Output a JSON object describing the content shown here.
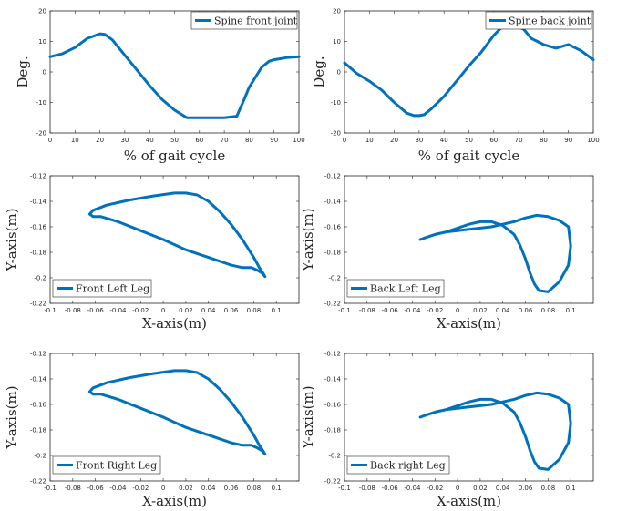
{
  "chart_data": [
    {
      "type": "line",
      "xlabel": "% of gait cycle",
      "ylabel": "Deg.",
      "xlim": [
        0,
        100
      ],
      "ylim": [
        -20,
        20
      ],
      "xticks": [
        0,
        10,
        20,
        30,
        40,
        50,
        60,
        70,
        80,
        90,
        100
      ],
      "yticks": [
        -20,
        -10,
        0,
        10,
        20
      ],
      "grid": false,
      "legend_loc": "top-right",
      "series": [
        {
          "name": "Spine front joint",
          "color": "#0072BD",
          "x": [
            0,
            5,
            10,
            15,
            20,
            22,
            25,
            30,
            35,
            40,
            45,
            50,
            55,
            57,
            60,
            65,
            70,
            75,
            78,
            80,
            85,
            88,
            90,
            95,
            100
          ],
          "y": [
            5,
            6,
            8,
            11,
            12.5,
            12.3,
            10.5,
            5.5,
            0.5,
            -4.5,
            -9,
            -12.5,
            -15,
            -15,
            -15,
            -15,
            -15,
            -14.5,
            -9,
            -5,
            1.5,
            3.5,
            4,
            4.7,
            5
          ]
        }
      ]
    },
    {
      "type": "line",
      "xlabel": "% of gait cycle",
      "ylabel": "Deg.",
      "xlim": [
        0,
        100
      ],
      "ylim": [
        -20,
        20
      ],
      "xticks": [
        0,
        10,
        20,
        30,
        40,
        50,
        60,
        70,
        80,
        90,
        100
      ],
      "yticks": [
        -20,
        -10,
        0,
        10,
        20
      ],
      "grid": false,
      "legend_loc": "top-right",
      "series": [
        {
          "name": "Spine back joint",
          "color": "#0072BD",
          "x": [
            0,
            5,
            10,
            15,
            20,
            25,
            28,
            30,
            32,
            35,
            40,
            45,
            50,
            55,
            60,
            63,
            65,
            70,
            72,
            75,
            80,
            85,
            90,
            95,
            100
          ],
          "y": [
            3,
            -0.5,
            -3,
            -6,
            -10,
            -13.5,
            -14.3,
            -14.3,
            -14,
            -12,
            -8,
            -3,
            2,
            6.5,
            12,
            14.5,
            15,
            14.7,
            14,
            11,
            9,
            7.8,
            9,
            7,
            4
          ]
        }
      ]
    },
    {
      "type": "line",
      "xlabel": "X-axis(m)",
      "ylabel": "Y-axis(m)",
      "xlim": [
        -0.1,
        0.12
      ],
      "ylim": [
        -0.22,
        -0.12
      ],
      "xticks": [
        "-0.1",
        "-0.08",
        "-0.06",
        "-0.04",
        "-0.02",
        "0",
        "0.02",
        "0.04",
        "0.06",
        "0.08",
        "0.1"
      ],
      "yticks": [
        "-0.22",
        "-0.2",
        "-0.18",
        "-0.16",
        "-0.14",
        "-0.12"
      ],
      "grid": false,
      "legend_loc": "bottom-left",
      "series": [
        {
          "name": "Front Left Leg",
          "color": "#0072BD",
          "x": [
            0.09,
            0.087,
            0.083,
            0.078,
            0.07,
            0.06,
            0.05,
            0.04,
            0.03,
            0.02,
            0.01,
            0,
            -0.02,
            -0.04,
            -0.055,
            -0.062,
            -0.065,
            -0.062,
            -0.05,
            -0.03,
            -0.01,
            0.01,
            0.02,
            0.03,
            0.04,
            0.05,
            0.06,
            0.07,
            0.08,
            0.085,
            0.088,
            0.09
          ],
          "y": [
            -0.199,
            -0.196,
            -0.194,
            -0.192,
            -0.192,
            -0.19,
            -0.187,
            -0.184,
            -0.181,
            -0.178,
            -0.174,
            -0.17,
            -0.163,
            -0.156,
            -0.152,
            -0.152,
            -0.15,
            -0.147,
            -0.143,
            -0.139,
            -0.136,
            -0.1335,
            -0.1335,
            -0.135,
            -0.14,
            -0.148,
            -0.158,
            -0.17,
            -0.184,
            -0.192,
            -0.196,
            -0.199
          ]
        }
      ]
    },
    {
      "type": "line",
      "xlabel": "X-axis(m)",
      "ylabel": "Y-axis(m)",
      "xlim": [
        -0.1,
        0.12
      ],
      "ylim": [
        -0.22,
        -0.12
      ],
      "xticks": [
        "-0.1",
        "-0.08",
        "-0.06",
        "-0.04",
        "-0.02",
        "0",
        "0.02",
        "0.04",
        "0.06",
        "0.08",
        "0.1"
      ],
      "yticks": [
        "-0.22",
        "-0.2",
        "-0.18",
        "-0.16",
        "-0.14",
        "-0.12"
      ],
      "grid": false,
      "legend_loc": "bottom-left",
      "series": [
        {
          "name": "Back Left Leg",
          "color": "#0072BD",
          "x": [
            -0.033,
            -0.03,
            -0.02,
            -0.01,
            0,
            0.01,
            0.02,
            0.03,
            0.04,
            0.05,
            0.06,
            0.07,
            0.08,
            0.09,
            0.098,
            0.1,
            0.098,
            0.09,
            0.08,
            0.072,
            0.068,
            0.064,
            0.06,
            0.055,
            0.05,
            0.04,
            0.03,
            0.02,
            0.01,
            0,
            -0.01,
            -0.02,
            -0.03,
            -0.033
          ],
          "y": [
            -0.17,
            -0.169,
            -0.166,
            -0.164,
            -0.163,
            -0.162,
            -0.161,
            -0.16,
            -0.158,
            -0.156,
            -0.153,
            -0.151,
            -0.152,
            -0.155,
            -0.16,
            -0.175,
            -0.19,
            -0.203,
            -0.211,
            -0.21,
            -0.205,
            -0.196,
            -0.185,
            -0.174,
            -0.166,
            -0.159,
            -0.156,
            -0.156,
            -0.158,
            -0.161,
            -0.164,
            -0.166,
            -0.169,
            -0.17
          ]
        }
      ]
    },
    {
      "type": "line",
      "xlabel": "X-axis(m)",
      "ylabel": "Y-axis(m)",
      "xlim": [
        -0.1,
        0.12
      ],
      "ylim": [
        -0.22,
        -0.12
      ],
      "xticks": [
        "-0.1",
        "-0.08",
        "-0.06",
        "-0.04",
        "-0.02",
        "0",
        "0.02",
        "0.04",
        "0.06",
        "0.08",
        "0.1"
      ],
      "yticks": [
        "-0.22",
        "-0.2",
        "-0.18",
        "-0.16",
        "-0.14",
        "-0.12"
      ],
      "grid": false,
      "legend_loc": "bottom-left",
      "series": [
        {
          "name": "Front Right Leg",
          "color": "#0072BD",
          "x": [
            0.09,
            0.087,
            0.083,
            0.078,
            0.07,
            0.06,
            0.05,
            0.04,
            0.03,
            0.02,
            0.01,
            0,
            -0.02,
            -0.04,
            -0.055,
            -0.062,
            -0.065,
            -0.062,
            -0.05,
            -0.03,
            -0.01,
            0.01,
            0.02,
            0.03,
            0.04,
            0.05,
            0.06,
            0.07,
            0.08,
            0.085,
            0.088,
            0.09
          ],
          "y": [
            -0.199,
            -0.196,
            -0.194,
            -0.192,
            -0.192,
            -0.19,
            -0.187,
            -0.184,
            -0.181,
            -0.178,
            -0.174,
            -0.17,
            -0.163,
            -0.156,
            -0.152,
            -0.152,
            -0.15,
            -0.147,
            -0.143,
            -0.139,
            -0.136,
            -0.1335,
            -0.1335,
            -0.135,
            -0.14,
            -0.148,
            -0.158,
            -0.17,
            -0.184,
            -0.192,
            -0.196,
            -0.199
          ]
        }
      ]
    },
    {
      "type": "line",
      "xlabel": "X-axis(m)",
      "ylabel": "Y-axis(m)",
      "xlim": [
        -0.1,
        0.12
      ],
      "ylim": [
        -0.22,
        -0.12
      ],
      "xticks": [
        "-0.1",
        "-0.08",
        "-0.06",
        "-0.04",
        "-0.02",
        "0",
        "0.02",
        "0.04",
        "0.06",
        "0.08",
        "0.1"
      ],
      "yticks": [
        "-0.22",
        "-0.2",
        "-0.18",
        "-0.16",
        "-0.14",
        "-0.12"
      ],
      "grid": false,
      "legend_loc": "bottom-left",
      "series": [
        {
          "name": "Back right Leg",
          "color": "#0072BD",
          "x": [
            -0.033,
            -0.03,
            -0.02,
            -0.01,
            0,
            0.01,
            0.02,
            0.03,
            0.04,
            0.05,
            0.06,
            0.07,
            0.08,
            0.09,
            0.098,
            0.1,
            0.098,
            0.09,
            0.08,
            0.072,
            0.068,
            0.064,
            0.06,
            0.055,
            0.05,
            0.04,
            0.03,
            0.02,
            0.01,
            0,
            -0.01,
            -0.02,
            -0.03,
            -0.033
          ],
          "y": [
            -0.17,
            -0.169,
            -0.166,
            -0.164,
            -0.163,
            -0.162,
            -0.161,
            -0.16,
            -0.158,
            -0.156,
            -0.153,
            -0.151,
            -0.152,
            -0.155,
            -0.16,
            -0.175,
            -0.19,
            -0.203,
            -0.211,
            -0.21,
            -0.205,
            -0.196,
            -0.185,
            -0.174,
            -0.166,
            -0.159,
            -0.156,
            -0.156,
            -0.158,
            -0.161,
            -0.164,
            -0.166,
            -0.169,
            -0.17
          ]
        }
      ]
    }
  ]
}
